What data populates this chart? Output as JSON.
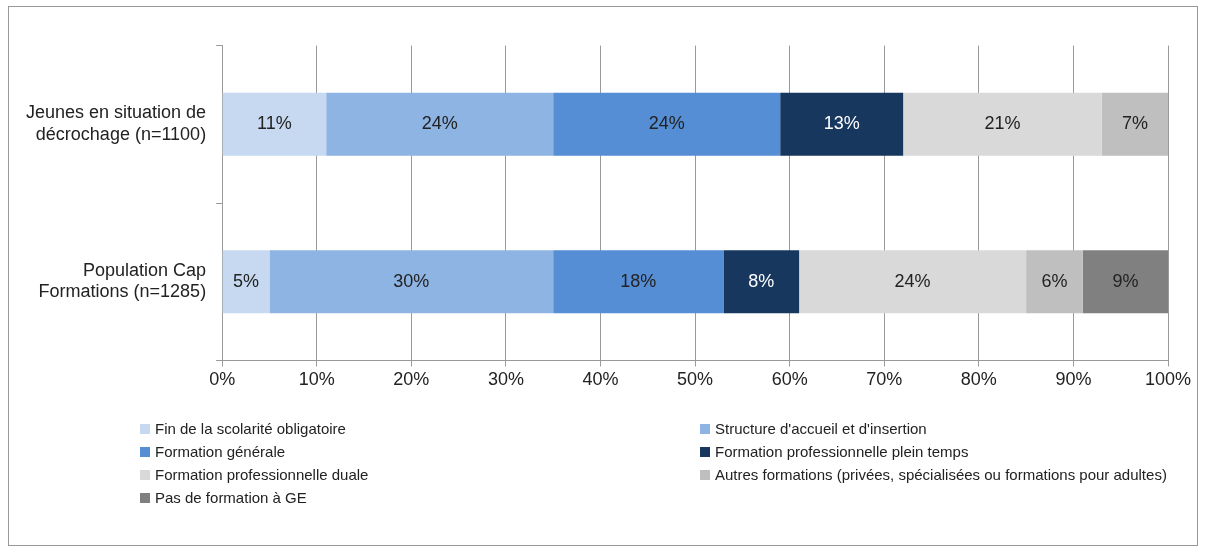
{
  "chart_data": {
    "type": "bar",
    "orientation": "horizontal",
    "stacked": true,
    "categories": [
      "Jeunes en situation de décrochage (n=1100)",
      "Population Cap Formations (n=1285)"
    ],
    "series": [
      {
        "name": "Fin de la scolarité obligatoire",
        "color": "#c6d9f1",
        "values": [
          11,
          5
        ],
        "value_labels": [
          "11%",
          "5%"
        ]
      },
      {
        "name": "Structure d'accueil et d'insertion",
        "color": "#8eb4e3",
        "values": [
          24,
          30
        ],
        "value_labels": [
          "24%",
          "30%"
        ]
      },
      {
        "name": "Formation générale",
        "color": "#558ed5",
        "values": [
          24,
          18
        ],
        "value_labels": [
          "24%",
          "18%"
        ]
      },
      {
        "name": "Formation professionnelle plein temps",
        "color": "#17375e",
        "values": [
          13,
          8
        ],
        "value_labels": [
          "13%",
          "8%"
        ]
      },
      {
        "name": "Formation professionnelle duale",
        "color": "#d9d9d9",
        "values": [
          21,
          24
        ],
        "value_labels": [
          "21%",
          "24%"
        ]
      },
      {
        "name": "Autres formations (privées, spécialisées ou formations pour adultes)",
        "color": "#bfbfbf",
        "values": [
          7,
          6
        ],
        "value_labels": [
          "7%",
          "6%"
        ]
      },
      {
        "name": "Pas de formation à GE",
        "color": "#808080",
        "values": [
          null,
          9
        ],
        "value_labels": [
          null,
          "9%"
        ]
      }
    ],
    "xlim": [
      0,
      100
    ],
    "xticks": [
      {
        "value": 0,
        "label": "0%"
      },
      {
        "value": 10,
        "label": "10%"
      },
      {
        "value": 20,
        "label": "20%"
      },
      {
        "value": 30,
        "label": "30%"
      },
      {
        "value": 40,
        "label": "40%"
      },
      {
        "value": 50,
        "label": "50%"
      },
      {
        "value": 60,
        "label": "60%"
      },
      {
        "value": 70,
        "label": "70%"
      },
      {
        "value": 80,
        "label": "80%"
      },
      {
        "value": 90,
        "label": "90%"
      },
      {
        "value": 100,
        "label": "100%"
      }
    ],
    "grid": "x",
    "legend": "bottom"
  }
}
